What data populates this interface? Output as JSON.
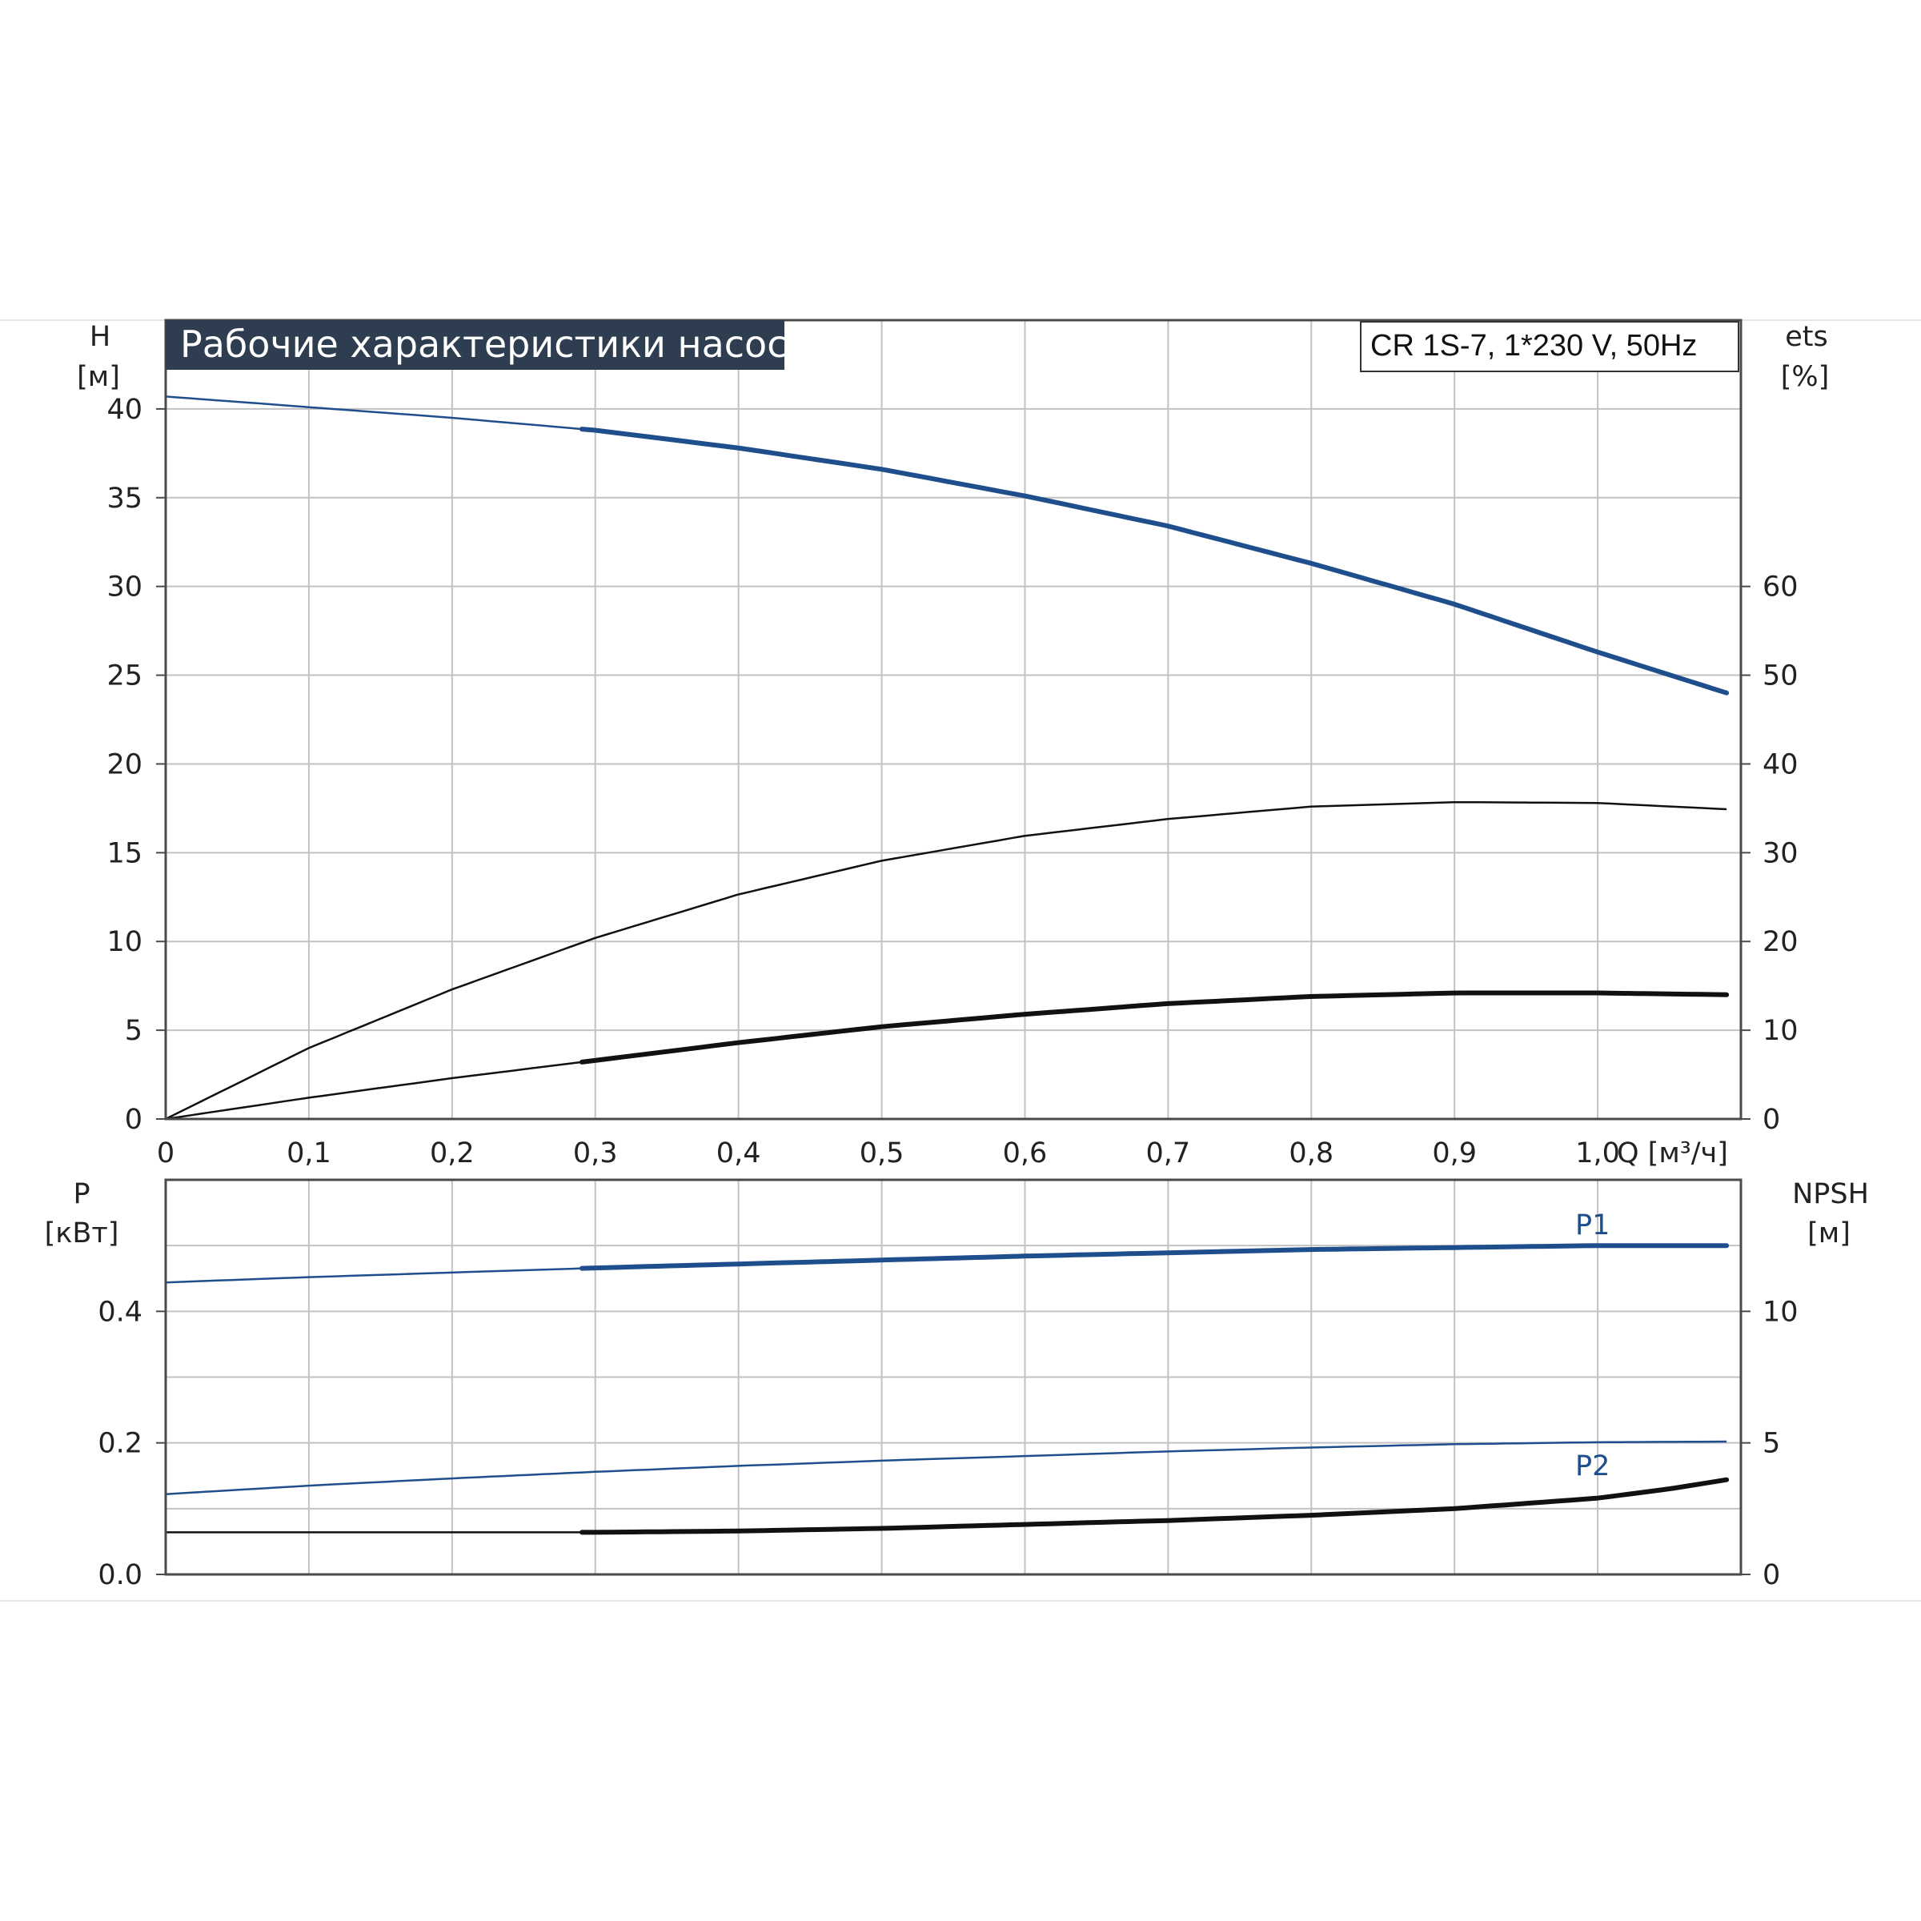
{
  "colors": {
    "title_bg": "#2e3d50",
    "head_curve": "#1e4f8c",
    "black_curve": "#111111",
    "p1_curve": "#1e4f8c",
    "p2_curve": "#1e4f8c",
    "npsh_curve": "#111111"
  },
  "chart_data": [
    {
      "type": "line",
      "title": "Рабочие характеристики насоса",
      "model": "CR 1S-7, 1*230 V, 50Hz",
      "xlabel": "Q [м³/ч]",
      "ylabel_left": [
        "H",
        "[м]"
      ],
      "ylabel_right": [
        "ets",
        "[%]"
      ],
      "xlim": [
        0,
        1.1
      ],
      "ylim_left": [
        0,
        45
      ],
      "ylim_right": [
        0,
        90
      ],
      "x_ticks": [
        "0",
        "0,1",
        "0,2",
        "0,3",
        "0,4",
        "0,5",
        "0,6",
        "0,7",
        "0,8",
        "0,9",
        "1,0"
      ],
      "y_ticks_left": [
        "0",
        "5",
        "10",
        "15",
        "20",
        "25",
        "30",
        "35",
        "40"
      ],
      "y_ticks_right": [
        "0",
        "10",
        "20",
        "30",
        "40",
        "50",
        "60"
      ],
      "grid": true,
      "series": [
        {
          "axis": "left",
          "color": "head_curve",
          "x": [
            0,
            0.1,
            0.2,
            0.3,
            0.4,
            0.5,
            0.6,
            0.7,
            0.8,
            0.9,
            1.0,
            1.09
          ],
          "values": [
            40.7,
            40.1,
            39.5,
            38.8,
            37.8,
            36.6,
            35.1,
            33.4,
            31.3,
            29.0,
            26.3,
            24.0
          ],
          "emphasis_from": 0.29
        },
        {
          "axis": "right",
          "color": "black_curve",
          "x": [
            0,
            0.1,
            0.2,
            0.3,
            0.4,
            0.5,
            0.6,
            0.7,
            0.8,
            0.9,
            1.0,
            1.09
          ],
          "values": [
            0,
            8.0,
            14.6,
            20.4,
            25.3,
            29.1,
            31.9,
            33.8,
            35.2,
            35.7,
            35.6,
            34.9
          ],
          "emphasis_from": 2
        },
        {
          "axis": "left",
          "color": "black_curve",
          "x": [
            0,
            0.1,
            0.2,
            0.3,
            0.4,
            0.5,
            0.6,
            0.7,
            0.8,
            0.9,
            1.0,
            1.09
          ],
          "values": [
            0,
            1.2,
            2.3,
            3.3,
            4.3,
            5.2,
            5.9,
            6.5,
            6.9,
            7.1,
            7.1,
            7.0
          ],
          "emphasis_from": 0.29
        }
      ]
    },
    {
      "type": "line",
      "xlim": [
        0,
        1.1
      ],
      "ylabel_left": [
        "P",
        "[кВт]"
      ],
      "ylabel_right": [
        "NPSH",
        "[м]"
      ],
      "ylim_left": [
        0,
        0.6
      ],
      "ylim_right": [
        0,
        15
      ],
      "y_ticks_left": [
        "0.0",
        "0.2",
        "0.4"
      ],
      "y_ticks_right": [
        "0",
        "5",
        "10"
      ],
      "grid": true,
      "series": [
        {
          "name": "P1",
          "axis": "left",
          "color": "p1_curve",
          "x": [
            0,
            0.1,
            0.2,
            0.3,
            0.4,
            0.5,
            0.6,
            0.7,
            0.8,
            0.9,
            1.0,
            1.09
          ],
          "values": [
            0.444,
            0.452,
            0.459,
            0.466,
            0.472,
            0.478,
            0.484,
            0.489,
            0.494,
            0.497,
            0.5,
            0.5
          ],
          "emphasis_from": 0.29
        },
        {
          "name": "P2",
          "axis": "left",
          "color": "p2_curve",
          "x": [
            0,
            0.1,
            0.2,
            0.3,
            0.4,
            0.5,
            0.6,
            0.7,
            0.8,
            0.9,
            1.0,
            1.09
          ],
          "values": [
            0.122,
            0.135,
            0.146,
            0.156,
            0.165,
            0.173,
            0.18,
            0.187,
            0.193,
            0.198,
            0.201,
            0.202
          ],
          "emphasis_from": 2
        },
        {
          "axis": "right",
          "color": "npsh_curve",
          "x": [
            0,
            0.29,
            0.3,
            0.4,
            0.5,
            0.6,
            0.7,
            0.8,
            0.9,
            1.0,
            1.05,
            1.09
          ],
          "values": [
            1.6,
            1.6,
            1.6,
            1.65,
            1.75,
            1.9,
            2.05,
            2.25,
            2.5,
            2.9,
            3.25,
            3.6
          ],
          "emphasis_from": 0.29
        }
      ]
    }
  ]
}
